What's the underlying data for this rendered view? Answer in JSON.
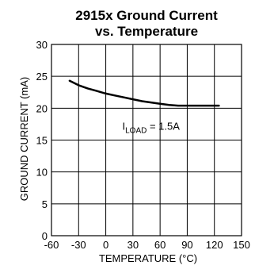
{
  "chart_data": {
    "type": "line",
    "title": "2915x Ground Current",
    "subtitle": "vs. Temperature",
    "xlabel": "TEMPERATURE (°C)",
    "ylabel": "GROUND CURRENT (mA)",
    "xlim": [
      -60,
      150
    ],
    "ylim": [
      0,
      30
    ],
    "xticks": [
      -60,
      -30,
      0,
      30,
      60,
      90,
      120,
      150
    ],
    "yticks": [
      0,
      5,
      10,
      15,
      20,
      25,
      30
    ],
    "grid": true,
    "annotation": {
      "prefix": "I",
      "subscript": "LOAD",
      "suffix": " = 1.5A",
      "x": 50,
      "y": 16.6
    },
    "series": [
      {
        "x": [
          -40,
          -30,
          -20,
          -10,
          0,
          10,
          20,
          30,
          40,
          50,
          60,
          70,
          80,
          90,
          100,
          110,
          125
        ],
        "y": [
          24.3,
          23.6,
          23.1,
          22.7,
          22.3,
          22.0,
          21.7,
          21.4,
          21.1,
          20.9,
          20.7,
          20.5,
          20.4,
          20.4,
          20.4,
          20.4,
          20.4
        ],
        "color": "#000000"
      }
    ]
  }
}
